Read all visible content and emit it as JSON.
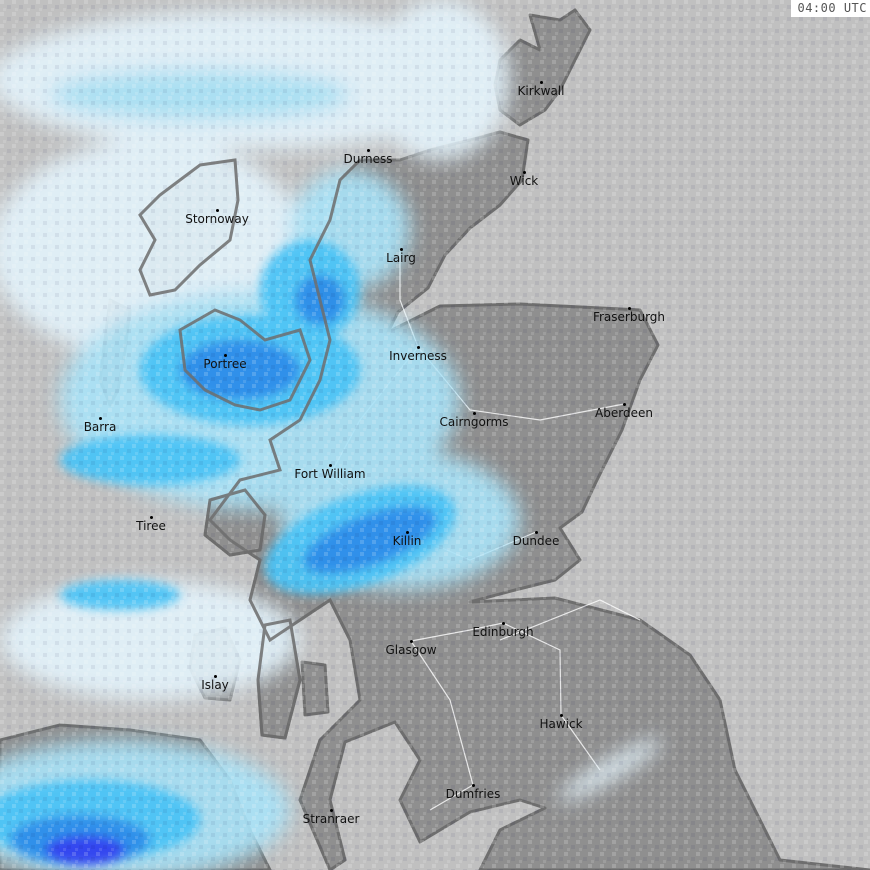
{
  "timestamp": "04:00 UTC",
  "colors": {
    "sea": "#c0c0c0",
    "land": "#8f8f8f",
    "coast": "#6e6e6e",
    "rain_trace": "#e2f2fa",
    "rain_light": "#a9e2f7",
    "rain_moderate": "#4cc3f5",
    "rain_heavy": "#2b8de9",
    "rain_very_heavy": "#2f3ff0"
  },
  "cities": [
    {
      "name": "Kirkwall"
    },
    {
      "name": "Wick"
    },
    {
      "name": "Durness"
    },
    {
      "name": "Stornoway"
    },
    {
      "name": "Lairg"
    },
    {
      "name": "Fraserburgh"
    },
    {
      "name": "Inverness"
    },
    {
      "name": "Portree"
    },
    {
      "name": "Aberdeen"
    },
    {
      "name": "Cairngorms"
    },
    {
      "name": "Barra"
    },
    {
      "name": "Fort William"
    },
    {
      "name": "Tiree"
    },
    {
      "name": "Killin"
    },
    {
      "name": "Dundee"
    },
    {
      "name": "Edinburgh"
    },
    {
      "name": "Glasgow"
    },
    {
      "name": "Islay"
    },
    {
      "name": "Hawick"
    },
    {
      "name": "Dumfries"
    },
    {
      "name": "Stranraer"
    }
  ]
}
